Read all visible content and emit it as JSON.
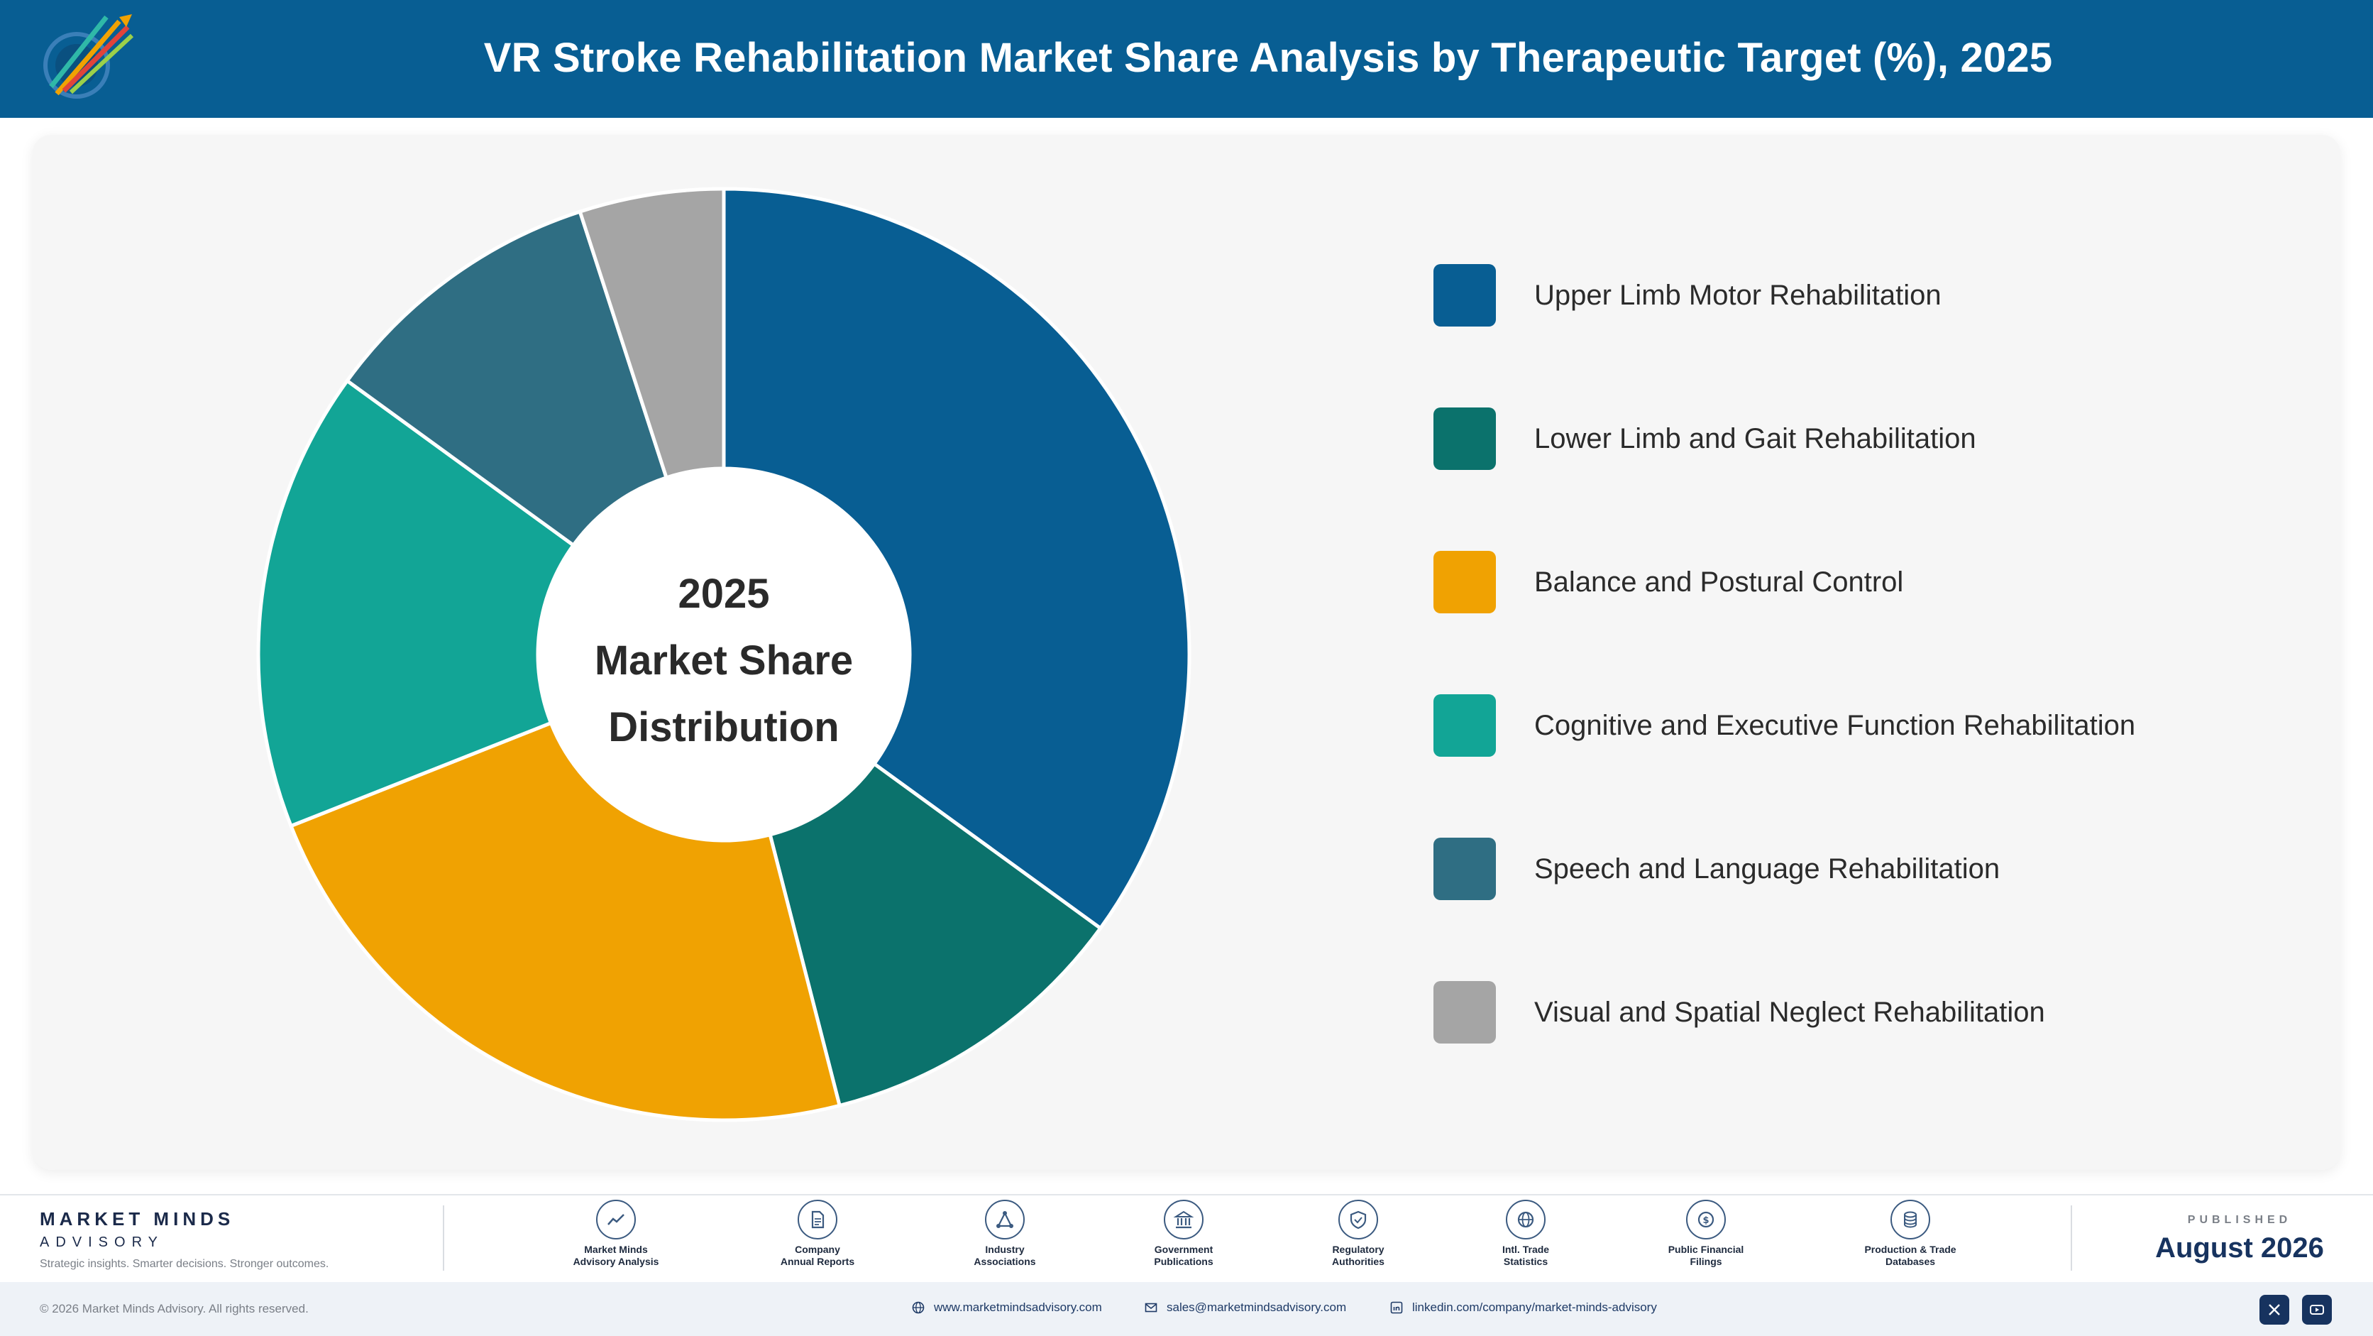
{
  "header": {
    "title": "VR Stroke Rehabilitation Market Share Analysis by Therapeutic Target (%), 2025",
    "background": "#085e93"
  },
  "chart_data": {
    "type": "pie",
    "style": "donut",
    "categories": [
      "Upper Limb Motor Rehabilitation",
      "Lower Limb and Gait Rehabilitation",
      "Balance and Postural Control",
      "Cognitive and Executive Function Rehabilitation",
      "Speech and Language Rehabilitation",
      "Visual and Spatial Neglect Rehabilitation"
    ],
    "values": [
      35,
      11,
      23,
      16,
      10,
      5
    ],
    "colors": [
      "#085e93",
      "#0b726c",
      "#f0a202",
      "#12a596",
      "#2f6e83",
      "#a5a5a5"
    ],
    "center_label": [
      "2025",
      "Market Share",
      "Distribution"
    ],
    "legend_placement": "right",
    "units": "%"
  },
  "footer": {
    "brand_name": "MARKET MINDS",
    "brand_sub": "ADVISORY",
    "tagline": "Strategic insights. Smarter decisions. Stronger outcomes.",
    "sources": [
      {
        "label": "Market Minds\nAdvisory Analysis",
        "icon": "trend-icon"
      },
      {
        "label": "Company\nAnnual Reports",
        "icon": "document-icon"
      },
      {
        "label": "Industry\nAssociations",
        "icon": "network-icon"
      },
      {
        "label": "Government\nPublications",
        "icon": "building-icon"
      },
      {
        "label": "Regulatory\nAuthorities",
        "icon": "shield-icon"
      },
      {
        "label": "Intl. Trade\nStatistics",
        "icon": "globe-icon"
      },
      {
        "label": "Public Financial\nFilings",
        "icon": "coin-icon"
      },
      {
        "label": "Production & Trade\nDatabases",
        "icon": "database-icon"
      }
    ],
    "published_label": "PUBLISHED",
    "published_date": "August 2026"
  },
  "bottom_bar": {
    "copyright": "© 2026 Market Minds Advisory. All rights reserved.",
    "website": "www.marketmindsadvisory.com",
    "email": "sales@marketmindsadvisory.com",
    "linkedin": "linkedin.com/company/market-minds-advisory"
  }
}
